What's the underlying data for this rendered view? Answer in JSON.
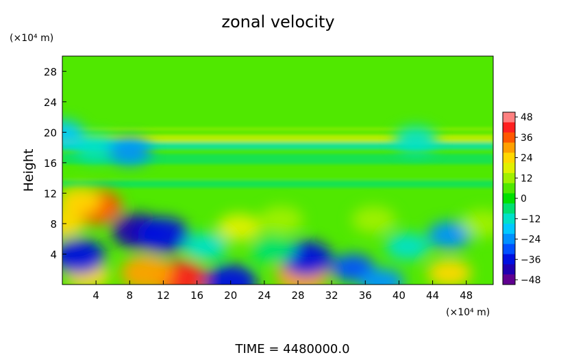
{
  "chart_data": {
    "type": "heatmap",
    "title": "zonal velocity",
    "xlabel": "",
    "ylabel": "Height",
    "x_unit_label": "(×10⁴ m)",
    "y_unit_label": "(×10⁴ m)",
    "x_ticks": [
      4,
      8,
      12,
      16,
      20,
      24,
      28,
      32,
      36,
      40,
      44,
      48
    ],
    "y_ticks": [
      4,
      8,
      12,
      16,
      20,
      24,
      28
    ],
    "xlim": [
      0,
      51.2
    ],
    "ylim": [
      0,
      30
    ],
    "colorbar": {
      "ticks": [
        48,
        36,
        24,
        12,
        0,
        -12,
        -24,
        -36,
        -48
      ],
      "range": [
        -48,
        48
      ],
      "colors": [
        "#ff8080",
        "#ff2020",
        "#ff5800",
        "#ffa000",
        "#ffd800",
        "#e0f000",
        "#a0f000",
        "#50e800",
        "#00e000",
        "#00e070",
        "#00e0c8",
        "#00c8ff",
        "#0090ff",
        "#0050ff",
        "#0010e0",
        "#2000b0",
        "#600090"
      ]
    },
    "features": [
      {
        "x": 14,
        "y": 0.8,
        "v": 42
      },
      {
        "x": 10,
        "y": 1.5,
        "v": 30
      },
      {
        "x": 3,
        "y": 1.2,
        "v": 26
      },
      {
        "x": 28.5,
        "y": 1.2,
        "v": 32
      },
      {
        "x": 46,
        "y": 1.5,
        "v": 22
      },
      {
        "x": 4,
        "y": 10.2,
        "v": 36
      },
      {
        "x": 2,
        "y": 11,
        "v": 24
      },
      {
        "x": 0,
        "y": 8,
        "v": 26
      },
      {
        "x": 9,
        "y": 7,
        "v": -40
      },
      {
        "x": 12,
        "y": 6.5,
        "v": -38
      },
      {
        "x": 2,
        "y": 3.7,
        "v": -36
      },
      {
        "x": 20,
        "y": 0.3,
        "v": -34
      },
      {
        "x": 29,
        "y": 3.4,
        "v": -38
      },
      {
        "x": 34.5,
        "y": 2.2,
        "v": -28
      },
      {
        "x": 38,
        "y": 0.3,
        "v": -26
      },
      {
        "x": 46,
        "y": 6.5,
        "v": -24
      },
      {
        "x": 4,
        "y": 18,
        "v": -14
      },
      {
        "x": 8,
        "y": 17.5,
        "v": -22
      },
      {
        "x": 0,
        "y": 19.8,
        "v": -18
      },
      {
        "x": 42,
        "y": 19,
        "v": -12
      },
      {
        "x": 21,
        "y": 7.5,
        "v": 18
      },
      {
        "x": 26,
        "y": 8.5,
        "v": 14
      },
      {
        "x": 37,
        "y": 8.5,
        "v": 12
      },
      {
        "x": 50,
        "y": 8,
        "v": 14
      },
      {
        "x": 25,
        "y": 4.5,
        "v": -8
      },
      {
        "x": 41,
        "y": 5,
        "v": -10
      },
      {
        "x": 17,
        "y": 5,
        "v": -12
      }
    ]
  },
  "footer": {
    "time_text": "TIME  =  4480000.0"
  }
}
